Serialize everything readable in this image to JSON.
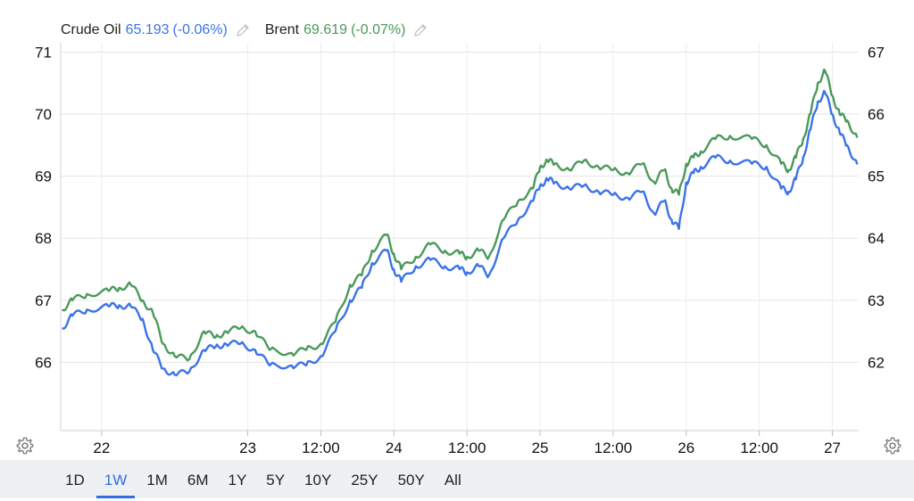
{
  "legend": [
    {
      "name": "Crude Oil",
      "value": "65.193",
      "change": "(-0.06%)",
      "color": "#3b73e8",
      "edit_icon": "pencil-icon"
    },
    {
      "name": "Brent",
      "value": "69.619",
      "change": "(-0.07%)",
      "color": "#4a9a5a",
      "edit_icon": "pencil-icon"
    }
  ],
  "settings_icon": "gear-icon",
  "ranges": [
    "1D",
    "1W",
    "1M",
    "6M",
    "1Y",
    "5Y",
    "10Y",
    "25Y",
    "50Y",
    "All"
  ],
  "active_range": "1W",
  "chart_data": {
    "type": "line",
    "x_ticks": [
      "22",
      "23",
      "12:00",
      "24",
      "12:00",
      "25",
      "12:00",
      "26",
      "12:00",
      "27"
    ],
    "x_tick_pos": [
      1,
      2,
      2.5,
      3,
      3.5,
      4,
      4.5,
      5,
      5.5,
      6
    ],
    "xlim": [
      0.72,
      6.18
    ],
    "left_axis": {
      "ticks": [
        66,
        67,
        68,
        69,
        70,
        71
      ],
      "ylim": [
        64.9,
        71.15
      ],
      "series": "Brent"
    },
    "right_axis": {
      "ticks": [
        62,
        63,
        64,
        65,
        66,
        67
      ],
      "ylim": [
        60.9,
        67.15
      ],
      "series": "Crude Oil"
    },
    "grid": true,
    "series": [
      {
        "name": "Brent",
        "axis": "left",
        "color": "#4a9a5a",
        "x": [
          0.73,
          0.8,
          0.9,
          1.05,
          1.12,
          1.2,
          1.28,
          1.35,
          1.42,
          1.5,
          1.6,
          1.7,
          1.78,
          1.85,
          1.95,
          2.05,
          2.15,
          2.3,
          2.4,
          2.5,
          2.6,
          2.7,
          2.78,
          2.85,
          2.95,
          3.0,
          3.05,
          3.15,
          3.25,
          3.35,
          3.45,
          3.5,
          3.58,
          3.65,
          3.75,
          3.85,
          3.95,
          4.0,
          4.05,
          4.1,
          4.2,
          4.3,
          4.4,
          4.5,
          4.6,
          4.7,
          4.78,
          4.85,
          4.9,
          4.95,
          5.0,
          5.05,
          5.1,
          5.2,
          5.3,
          5.45,
          5.55,
          5.65,
          5.7,
          5.75,
          5.8,
          5.85,
          5.9,
          5.95,
          6.0,
          6.05,
          6.1,
          6.17
        ],
        "y": [
          66.85,
          67.0,
          67.1,
          67.15,
          67.2,
          67.25,
          67.0,
          66.8,
          66.3,
          66.1,
          66.05,
          66.5,
          66.4,
          66.5,
          66.55,
          66.5,
          66.2,
          66.15,
          66.2,
          66.3,
          66.65,
          67.25,
          67.4,
          67.8,
          68.05,
          67.75,
          67.5,
          67.7,
          67.9,
          67.8,
          67.75,
          67.7,
          67.8,
          67.7,
          68.3,
          68.6,
          68.8,
          69.15,
          69.25,
          69.2,
          69.1,
          69.25,
          69.15,
          69.1,
          69.05,
          69.2,
          68.9,
          69.1,
          68.8,
          68.7,
          69.2,
          69.3,
          69.4,
          69.6,
          69.65,
          69.6,
          69.5,
          69.2,
          69.1,
          69.3,
          69.6,
          70.0,
          70.5,
          70.7,
          70.3,
          70.0,
          69.9,
          69.62
        ]
      },
      {
        "name": "Crude Oil",
        "axis": "right",
        "color": "#3b73e8",
        "x": [
          0.73,
          0.8,
          0.9,
          1.05,
          1.12,
          1.2,
          1.28,
          1.35,
          1.42,
          1.5,
          1.6,
          1.7,
          1.78,
          1.85,
          1.95,
          2.05,
          2.15,
          2.3,
          2.4,
          2.5,
          2.6,
          2.7,
          2.78,
          2.85,
          2.95,
          3.0,
          3.05,
          3.15,
          3.25,
          3.35,
          3.45,
          3.5,
          3.58,
          3.65,
          3.75,
          3.85,
          3.95,
          4.0,
          4.05,
          4.1,
          4.2,
          4.3,
          4.4,
          4.5,
          4.6,
          4.7,
          4.78,
          4.85,
          4.9,
          4.95,
          5.0,
          5.05,
          5.1,
          5.2,
          5.3,
          5.45,
          5.55,
          5.65,
          5.7,
          5.75,
          5.8,
          5.85,
          5.9,
          5.95,
          6.0,
          6.05,
          6.1,
          6.17
        ],
        "y": [
          62.55,
          62.75,
          62.85,
          62.9,
          62.92,
          62.9,
          62.7,
          62.2,
          61.9,
          61.8,
          61.85,
          62.2,
          62.25,
          62.3,
          62.3,
          62.2,
          61.95,
          61.95,
          61.95,
          62.1,
          62.5,
          63.0,
          63.2,
          63.6,
          63.8,
          63.5,
          63.3,
          63.55,
          63.65,
          63.55,
          63.5,
          63.45,
          63.55,
          63.4,
          64.0,
          64.3,
          64.6,
          64.85,
          64.95,
          64.9,
          64.8,
          64.85,
          64.75,
          64.7,
          64.65,
          64.75,
          64.4,
          64.6,
          64.3,
          64.15,
          64.9,
          65.05,
          65.15,
          65.3,
          65.25,
          65.2,
          65.15,
          64.8,
          64.75,
          64.95,
          65.3,
          65.75,
          66.2,
          66.35,
          66.0,
          65.7,
          65.5,
          65.19
        ]
      }
    ]
  }
}
